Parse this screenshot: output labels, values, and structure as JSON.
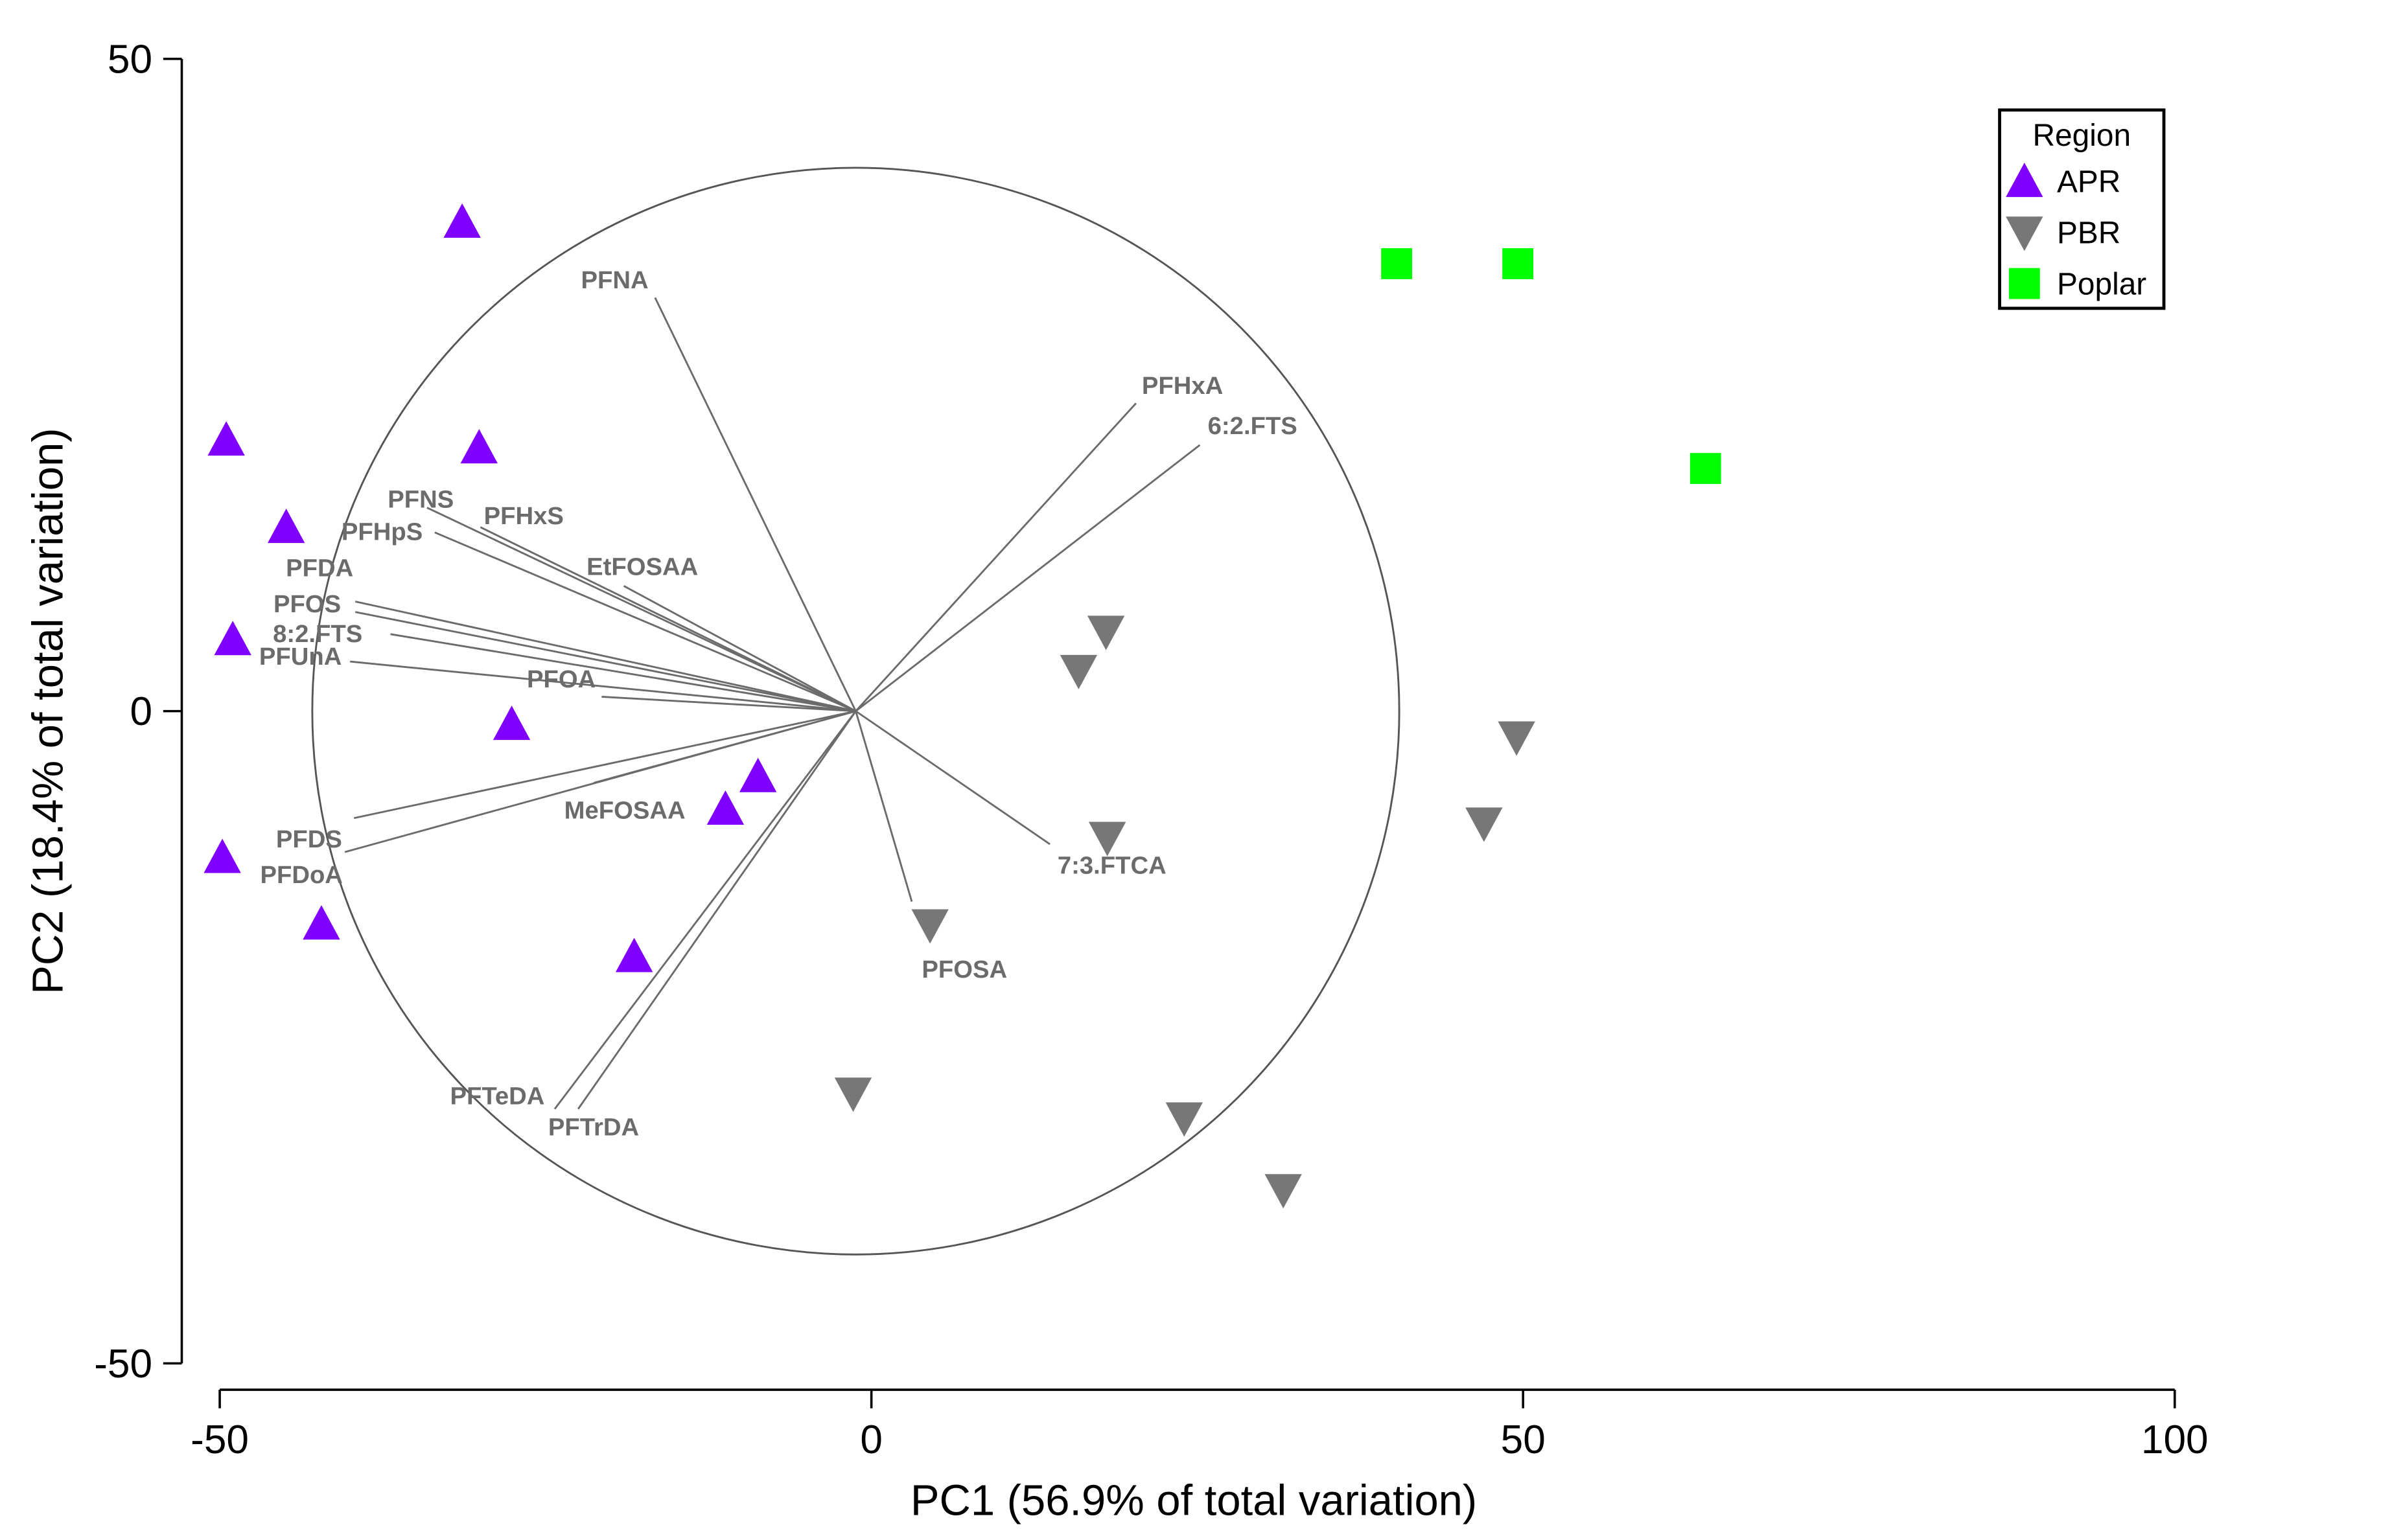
{
  "chart_data": {
    "type": "scatter",
    "subtype": "pca-biplot",
    "xlabel": "PC1 (56.9% of total variation)",
    "ylabel": "PC2 (18.4% of total variation)",
    "xlim": [
      -50,
      100
    ],
    "ylim": [
      -50,
      50
    ],
    "xticks": [
      "-50",
      "0",
      "50",
      "100"
    ],
    "yticks": [
      "50",
      "0",
      "-50"
    ],
    "grid": false,
    "legend": {
      "title": "Region",
      "placement": "top-right"
    },
    "series": [
      {
        "name": "APR",
        "marker": "triangle-up",
        "color": "#7F00FF",
        "points": [
          [
            -31.4,
            37.5
          ],
          [
            -49.5,
            20.8
          ],
          [
            -30.1,
            20.2
          ],
          [
            -44.9,
            14.1
          ],
          [
            -49.0,
            5.5
          ],
          [
            -27.6,
            -1.0
          ],
          [
            -8.7,
            -5.0
          ],
          [
            -11.2,
            -7.5
          ],
          [
            -49.8,
            -11.2
          ],
          [
            -42.2,
            -16.3
          ],
          [
            -18.2,
            -18.8
          ]
        ]
      },
      {
        "name": "PBR",
        "marker": "triangle-down",
        "color": "#777777",
        "points": [
          [
            18.0,
            6.1
          ],
          [
            15.9,
            3.1
          ],
          [
            49.5,
            -2.0
          ],
          [
            18.1,
            -9.7
          ],
          [
            47.0,
            -8.6
          ],
          [
            4.5,
            -16.4
          ],
          [
            -1.4,
            -29.3
          ],
          [
            24.0,
            -31.2
          ],
          [
            31.6,
            -36.7
          ]
        ]
      },
      {
        "name": "Poplar",
        "marker": "square",
        "color": "#00FF00",
        "points": [
          [
            40.3,
            34.3
          ],
          [
            49.6,
            34.3
          ],
          [
            64.0,
            18.6
          ]
        ]
      }
    ],
    "loadings_origin": [
      -1.2,
      0
    ],
    "loadings_circle_radius": 41.7,
    "loadings": [
      {
        "name": "PFNA",
        "x": -16.6,
        "y": 31.7
      },
      {
        "name": "PFHxA",
        "x": 20.3,
        "y": 23.6
      },
      {
        "name": "6:2.FTS",
        "x": 25.2,
        "y": 20.4
      },
      {
        "name": "PFNS",
        "x": -34.1,
        "y": 15.6
      },
      {
        "name": "PFHxS",
        "x": -30.0,
        "y": 14.1
      },
      {
        "name": "PFHpS",
        "x": -33.5,
        "y": 13.7
      },
      {
        "name": "EtFOSAA",
        "x": -19.0,
        "y": 9.6
      },
      {
        "name": "PFDA",
        "x": -39.6,
        "y": 7.6
      },
      {
        "name": "PFOS",
        "x": -39.6,
        "y": 8.4
      },
      {
        "name": "8:2.FTS",
        "x": -36.9,
        "y": 5.9
      },
      {
        "name": "PFUnA",
        "x": -40.0,
        "y": 3.8
      },
      {
        "name": "PFOA",
        "x": -20.7,
        "y": 1.1
      },
      {
        "name": "PFDS",
        "x": -39.7,
        "y": -8.2
      },
      {
        "name": "PFDoA",
        "x": -40.4,
        "y": -10.8
      },
      {
        "name": "MeFOSAA",
        "x": -21.3,
        "y": -5.5
      },
      {
        "name": "PFTeDA",
        "x": -24.3,
        "y": -30.5
      },
      {
        "name": "PFTrDA",
        "x": -22.5,
        "y": -30.5
      },
      {
        "name": "PFOSA",
        "x": 3.1,
        "y": -14.6
      },
      {
        "name": "7:3.FTCA",
        "x": 13.7,
        "y": -10.2
      }
    ],
    "loading_color": "#6b6b6b"
  }
}
